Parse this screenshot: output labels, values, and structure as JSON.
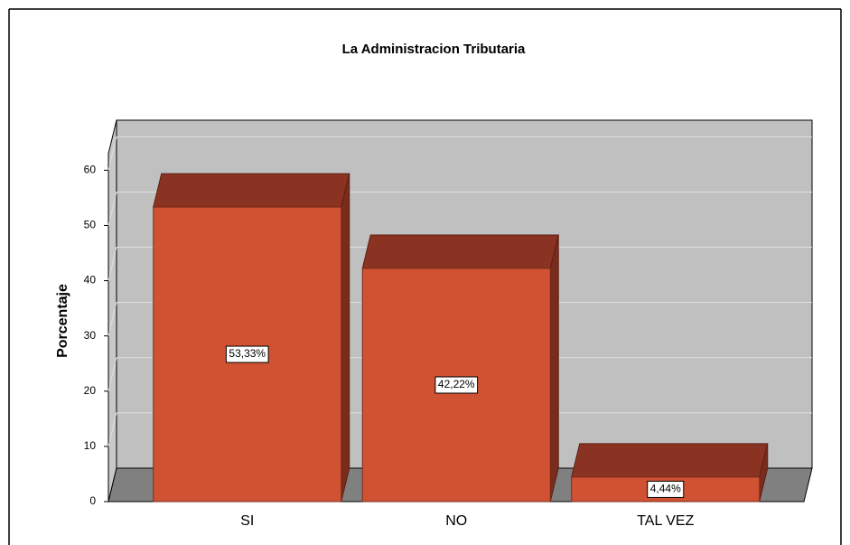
{
  "chart_data": {
    "type": "bar3d",
    "title": "La Administracion Tributaria",
    "y_label": "Porcentaje",
    "categories": [
      "SI",
      "NO",
      "TAL VEZ"
    ],
    "values": [
      53.33,
      42.22,
      4.44
    ],
    "value_labels": [
      "53,33%",
      "42,22%",
      "4,44%"
    ],
    "color": "#d05232",
    "ylim": [
      0,
      63
    ],
    "yticks": [
      0,
      10,
      20,
      30,
      40,
      50,
      60
    ],
    "grid": true
  }
}
